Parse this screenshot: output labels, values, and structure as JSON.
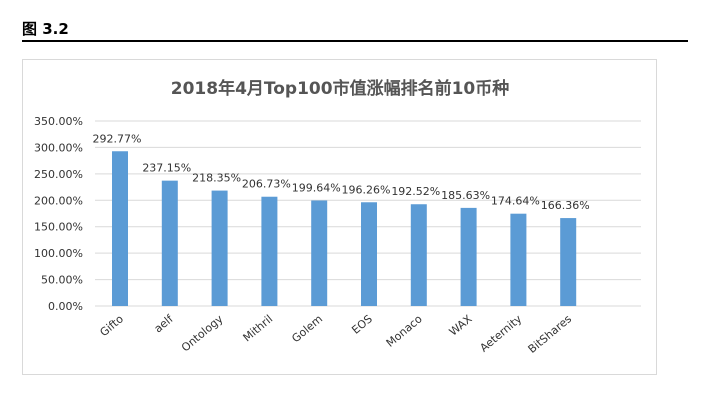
{
  "figure_label": "图 3.2",
  "chart_data": {
    "type": "bar",
    "title": "2018年4月Top100市值涨幅排名前10币种",
    "categories": [
      "Gifto",
      "aelf",
      "Ontology",
      "Mithril",
      "Golem",
      "EOS",
      "Monaco",
      "WAX",
      "Aeternity",
      "BitShares"
    ],
    "values": [
      292.77,
      237.15,
      218.35,
      206.73,
      199.64,
      196.26,
      192.52,
      185.63,
      174.64,
      166.36
    ],
    "data_labels": [
      "292.77%",
      "237.15%",
      "218.35%",
      "206.73%",
      "199.64%",
      "196.26%",
      "192.52%",
      "185.63%",
      "174.64%",
      "166.36%"
    ],
    "y_ticks": [
      0,
      50,
      100,
      150,
      200,
      250,
      300,
      350
    ],
    "y_tick_labels": [
      "0.00%",
      "50.00%",
      "100.00%",
      "150.00%",
      "200.00%",
      "250.00%",
      "300.00%",
      "350.00%"
    ],
    "ylim": [
      0,
      350
    ],
    "xlabel": "",
    "ylabel": "",
    "grid": true,
    "bar_color": "#5b9bd5",
    "grid_color": "#d9d9d9"
  }
}
